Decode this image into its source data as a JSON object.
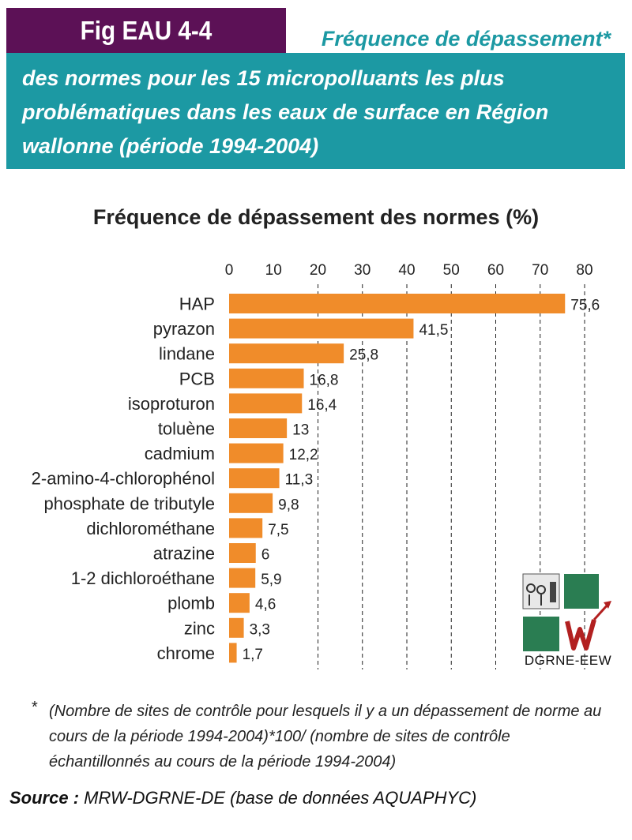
{
  "header": {
    "fig_label": "Fig EAU 4-4",
    "title_line_1": "Fréquence de dépassement*",
    "title_rest": "des normes pour les 15 micropolluants les plus problématiques dans les eaux de surface en Région wallonne (période 1994-2004)"
  },
  "colors": {
    "teal": "#1c99a3",
    "purple": "#5c1156",
    "bar": "#f08c2a"
  },
  "chart_data": {
    "type": "bar",
    "orientation": "horizontal",
    "title": "Fréquence de dépassement des normes (%)",
    "xlim": [
      0,
      80
    ],
    "x_ticks": [
      0,
      10,
      20,
      30,
      40,
      50,
      60,
      70,
      80
    ],
    "grid": "dashed vertical at 20, 30, 40, 50, 60, 70, 80",
    "categories": [
      "HAP",
      "pyrazon",
      "lindane",
      "PCB",
      "isoproturon",
      "toluène",
      "cadmium",
      "2-amino-4-chlorophénol",
      "phosphate de tributyle",
      "dichlorométhane",
      "atrazine",
      "1-2 dichloroéthane",
      "plomb",
      "zinc",
      "chrome"
    ],
    "values": [
      75.6,
      41.5,
      25.8,
      16.8,
      16.4,
      13,
      12.2,
      11.3,
      9.8,
      7.5,
      6,
      5.9,
      4.6,
      3.3,
      1.7
    ],
    "value_labels": [
      "75,6",
      "41,5",
      "25,8",
      "16,8",
      "16,4",
      "13",
      "12,2",
      "11,3",
      "9,8",
      "7,5",
      "6",
      "5,9",
      "4,6",
      "3,3",
      "1,7"
    ]
  },
  "footnote": {
    "marker": "*",
    "text": "(Nombre de sites de contrôle pour lesquels il y a un dépassement de norme au cours de la période 1994-2004)*100/ (nombre de sites de contrôle échantillonnés au cours de la période 1994-2004)"
  },
  "source": {
    "label": "Source :",
    "text": "MRW-DGRNE-DE (base de données AQUAPHYC)"
  },
  "logo": {
    "caption": "DGRNE-EEW"
  }
}
